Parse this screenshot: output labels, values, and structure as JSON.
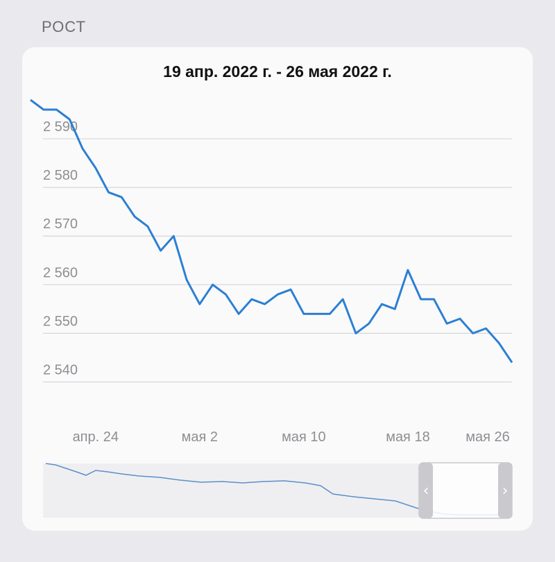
{
  "section_label": "РОСТ",
  "chart_data": {
    "type": "line",
    "title": "19 апр. 2022 г. - 26 мая 2022 г.",
    "xlabel": "",
    "ylabel": "",
    "y_ticks": [
      2590,
      2580,
      2570,
      2560,
      2550,
      2540
    ],
    "y_tick_labels": [
      "2 590",
      "2 580",
      "2 570",
      "2 560",
      "2 550",
      "2 540"
    ],
    "ylim": [
      2537.5,
      2598
    ],
    "x_tick_labels": [
      "апр. 24",
      "мая 2",
      "мая 10",
      "мая 18",
      "мая 26"
    ],
    "x_tick_days": [
      24,
      32,
      40,
      48,
      56
    ],
    "xlim": [
      19,
      56
    ],
    "grid": true,
    "series": [
      {
        "color": "#2b7fd4",
        "x": [
          19,
          20,
          21,
          22,
          23,
          24,
          25,
          26,
          27,
          28,
          29,
          30,
          31,
          32,
          33,
          34,
          35,
          36,
          37,
          38,
          39,
          40,
          41,
          42,
          43,
          44,
          45,
          46,
          47,
          48,
          49,
          50,
          51,
          52,
          53,
          54,
          55,
          56
        ],
        "values": [
          2598,
          2596,
          2596,
          2594,
          2588,
          2584,
          2579,
          2578,
          2574,
          2572,
          2567,
          2570,
          2561,
          2556,
          2560,
          2558,
          2554,
          2557,
          2556,
          2558,
          2559,
          2554,
          2554,
          2554,
          2557,
          2550,
          2552,
          2556,
          2555,
          2563,
          2557,
          2557,
          2552,
          2553,
          2550,
          2551,
          2548,
          2544
        ]
      }
    ]
  },
  "navigator": {
    "left_handle": "‹",
    "right_handle": "›"
  }
}
